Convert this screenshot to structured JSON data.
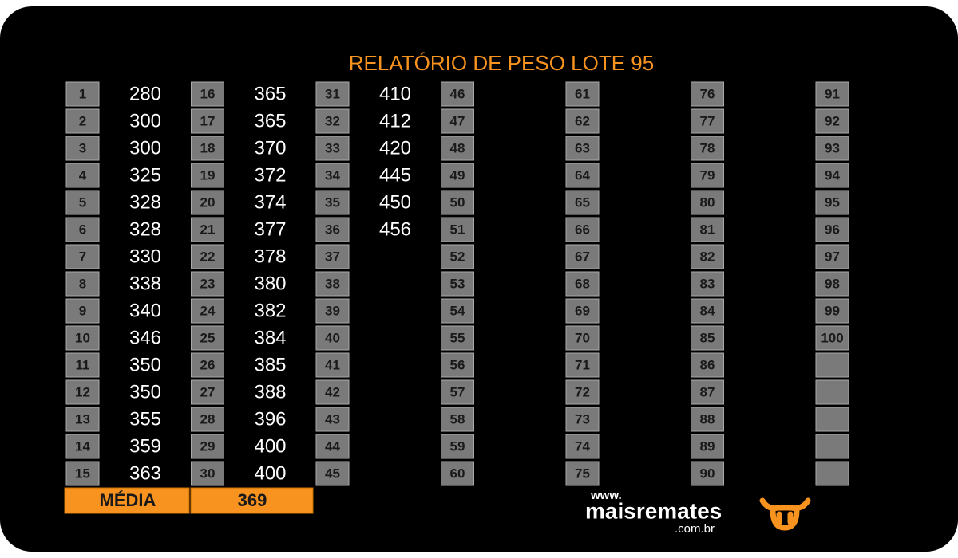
{
  "title": "RELATÓRIO DE PESO LOTE 95",
  "lots": [
    {
      "number": 1,
      "weight": 280
    },
    {
      "number": 2,
      "weight": 300
    },
    {
      "number": 3,
      "weight": 300
    },
    {
      "number": 4,
      "weight": 325
    },
    {
      "number": 5,
      "weight": 328
    },
    {
      "number": 6,
      "weight": 328
    },
    {
      "number": 7,
      "weight": 330
    },
    {
      "number": 8,
      "weight": 338
    },
    {
      "number": 9,
      "weight": 340
    },
    {
      "number": 10,
      "weight": 346
    },
    {
      "number": 11,
      "weight": 350
    },
    {
      "number": 12,
      "weight": 350
    },
    {
      "number": 13,
      "weight": 355
    },
    {
      "number": 14,
      "weight": 359
    },
    {
      "number": 15,
      "weight": 363
    },
    {
      "number": 16,
      "weight": 365
    },
    {
      "number": 17,
      "weight": 365
    },
    {
      "number": 18,
      "weight": 370
    },
    {
      "number": 19,
      "weight": 372
    },
    {
      "number": 20,
      "weight": 374
    },
    {
      "number": 21,
      "weight": 377
    },
    {
      "number": 22,
      "weight": 378
    },
    {
      "number": 23,
      "weight": 380
    },
    {
      "number": 24,
      "weight": 382
    },
    {
      "number": 25,
      "weight": 384
    },
    {
      "number": 26,
      "weight": 385
    },
    {
      "number": 27,
      "weight": 388
    },
    {
      "number": 28,
      "weight": 396
    },
    {
      "number": 29,
      "weight": 400
    },
    {
      "number": 30,
      "weight": 400
    },
    {
      "number": 31,
      "weight": 410
    },
    {
      "number": 32,
      "weight": 412
    },
    {
      "number": 33,
      "weight": 420
    },
    {
      "number": 34,
      "weight": 445
    },
    {
      "number": 35,
      "weight": 450
    },
    {
      "number": 36,
      "weight": 456
    },
    {
      "number": 37
    },
    {
      "number": 38
    },
    {
      "number": 39
    },
    {
      "number": 40
    },
    {
      "number": 41
    },
    {
      "number": 42
    },
    {
      "number": 43
    },
    {
      "number": 44
    },
    {
      "number": 45
    },
    {
      "number": 46
    },
    {
      "number": 47
    },
    {
      "number": 48
    },
    {
      "number": 49
    },
    {
      "number": 50
    },
    {
      "number": 51
    },
    {
      "number": 52
    },
    {
      "number": 53
    },
    {
      "number": 54
    },
    {
      "number": 55
    },
    {
      "number": 56
    },
    {
      "number": 57
    },
    {
      "number": 58
    },
    {
      "number": 59
    },
    {
      "number": 60
    },
    {
      "number": 61
    },
    {
      "number": 62
    },
    {
      "number": 63
    },
    {
      "number": 64
    },
    {
      "number": 65
    },
    {
      "number": 66
    },
    {
      "number": 67
    },
    {
      "number": 68
    },
    {
      "number": 69
    },
    {
      "number": 70
    },
    {
      "number": 71
    },
    {
      "number": 72
    },
    {
      "number": 73
    },
    {
      "number": 74
    },
    {
      "number": 75
    },
    {
      "number": 76
    },
    {
      "number": 77
    },
    {
      "number": 78
    },
    {
      "number": 79
    },
    {
      "number": 80
    },
    {
      "number": 81
    },
    {
      "number": 82
    },
    {
      "number": 83
    },
    {
      "number": 84
    },
    {
      "number": 85
    },
    {
      "number": 86
    },
    {
      "number": 87
    },
    {
      "number": 88
    },
    {
      "number": 89
    },
    {
      "number": 90
    },
    {
      "number": 91
    },
    {
      "number": 92
    },
    {
      "number": 93
    },
    {
      "number": 94
    },
    {
      "number": 95
    },
    {
      "number": 96
    },
    {
      "number": 97
    },
    {
      "number": 98
    },
    {
      "number": 99
    },
    {
      "number": 100
    }
  ],
  "average": {
    "label": "MÉDIA",
    "value": 369
  },
  "logo": {
    "prefix": "www.",
    "name": "maisremates",
    "suffix": ".com.br"
  }
}
